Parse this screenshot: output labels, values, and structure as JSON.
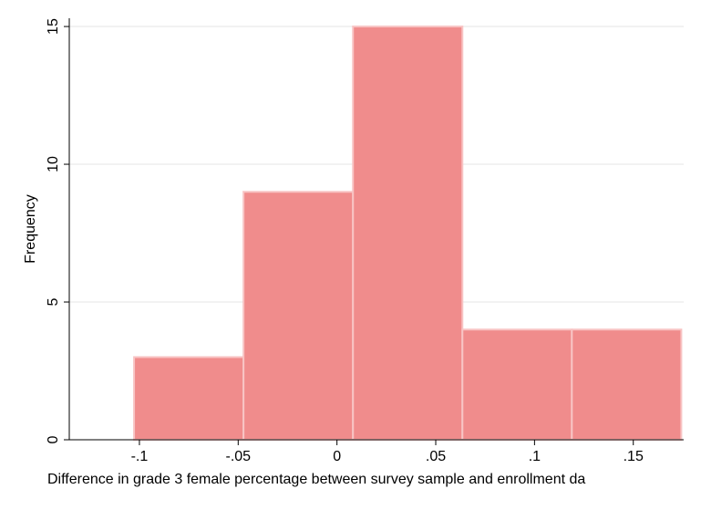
{
  "chart_data": {
    "type": "bar",
    "subtype": "histogram",
    "xlabel": "Difference in grade 3 female percentage between survey sample and enrollment da",
    "ylabel": "Frequency",
    "bins": [
      {
        "x0": -0.1027,
        "x1": -0.0473,
        "count": 3
      },
      {
        "x0": -0.0473,
        "x1": 0.0081,
        "count": 9
      },
      {
        "x0": 0.0081,
        "x1": 0.0635,
        "count": 15
      },
      {
        "x0": 0.0635,
        "x1": 0.1189,
        "count": 4
      },
      {
        "x0": 0.1189,
        "x1": 0.1743,
        "count": 4
      }
    ],
    "xticks": [
      {
        "value": -0.1,
        "label": "-.1"
      },
      {
        "value": -0.05,
        "label": "-.05"
      },
      {
        "value": 0,
        "label": "0"
      },
      {
        "value": 0.05,
        "label": ".05"
      },
      {
        "value": 0.1,
        "label": ".1"
      },
      {
        "value": 0.15,
        "label": ".15"
      }
    ],
    "yticks": [
      {
        "value": 0,
        "label": "0"
      },
      {
        "value": 5,
        "label": "5"
      },
      {
        "value": 10,
        "label": "10"
      },
      {
        "value": 15,
        "label": "15"
      }
    ],
    "xlim": [
      -0.1355,
      0.1755
    ],
    "ylim": [
      0,
      15.3
    ],
    "grid": true,
    "colors": {
      "bar_fill": "#f08c8c",
      "bar_stroke": "#f8c4c4",
      "grid": "#e6e6e6",
      "axis": "#000000"
    }
  }
}
